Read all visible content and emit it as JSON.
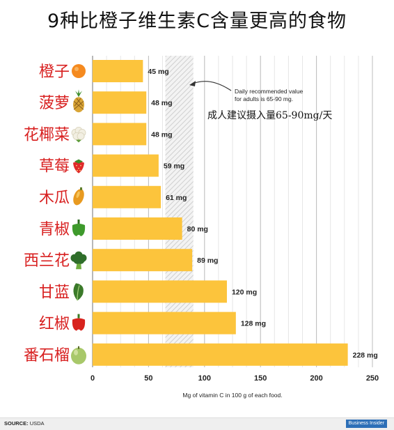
{
  "title": "9种比橙子维生素C含量更高的食物",
  "chart_data": {
    "type": "bar",
    "orientation": "horizontal",
    "categories": [
      "橙子",
      "菠萝",
      "花椰菜",
      "草莓",
      "木瓜",
      "青椒",
      "西兰花",
      "甘蓝",
      "红椒",
      "番石榴"
    ],
    "values": [
      45,
      48,
      48,
      59,
      61,
      80,
      89,
      120,
      128,
      228
    ],
    "value_labels": [
      "45 mg",
      "48 mg",
      "48 mg",
      "59 mg",
      "61 mg",
      "80 mg",
      "89 mg",
      "120 mg",
      "128 mg",
      "228 mg"
    ],
    "icons": [
      "orange-icon",
      "pineapple-icon",
      "cauliflower-icon",
      "strawberry-icon",
      "papaya-icon",
      "green-pepper-icon",
      "broccoli-icon",
      "kale-icon",
      "red-pepper-icon",
      "guava-icon"
    ],
    "xlabel": "Mg of vitamin C in 100 g of each food.",
    "xlim": [
      0,
      250
    ],
    "xticks": [
      "0",
      "50",
      "100",
      "150",
      "200",
      "250"
    ],
    "grid": true,
    "bar_color": "#fcc43c",
    "category_label_color": "#d82020",
    "recommended_range": [
      65,
      90
    ],
    "annotation_en": [
      "Daily recommended value",
      "for adults is 65-90 mg."
    ],
    "annotation_cn": "成人建议摄入量65-90mg/天"
  },
  "footer": {
    "source_label": "SOURCE:",
    "source_value": "USDA",
    "logo_text": "Business Insider"
  }
}
